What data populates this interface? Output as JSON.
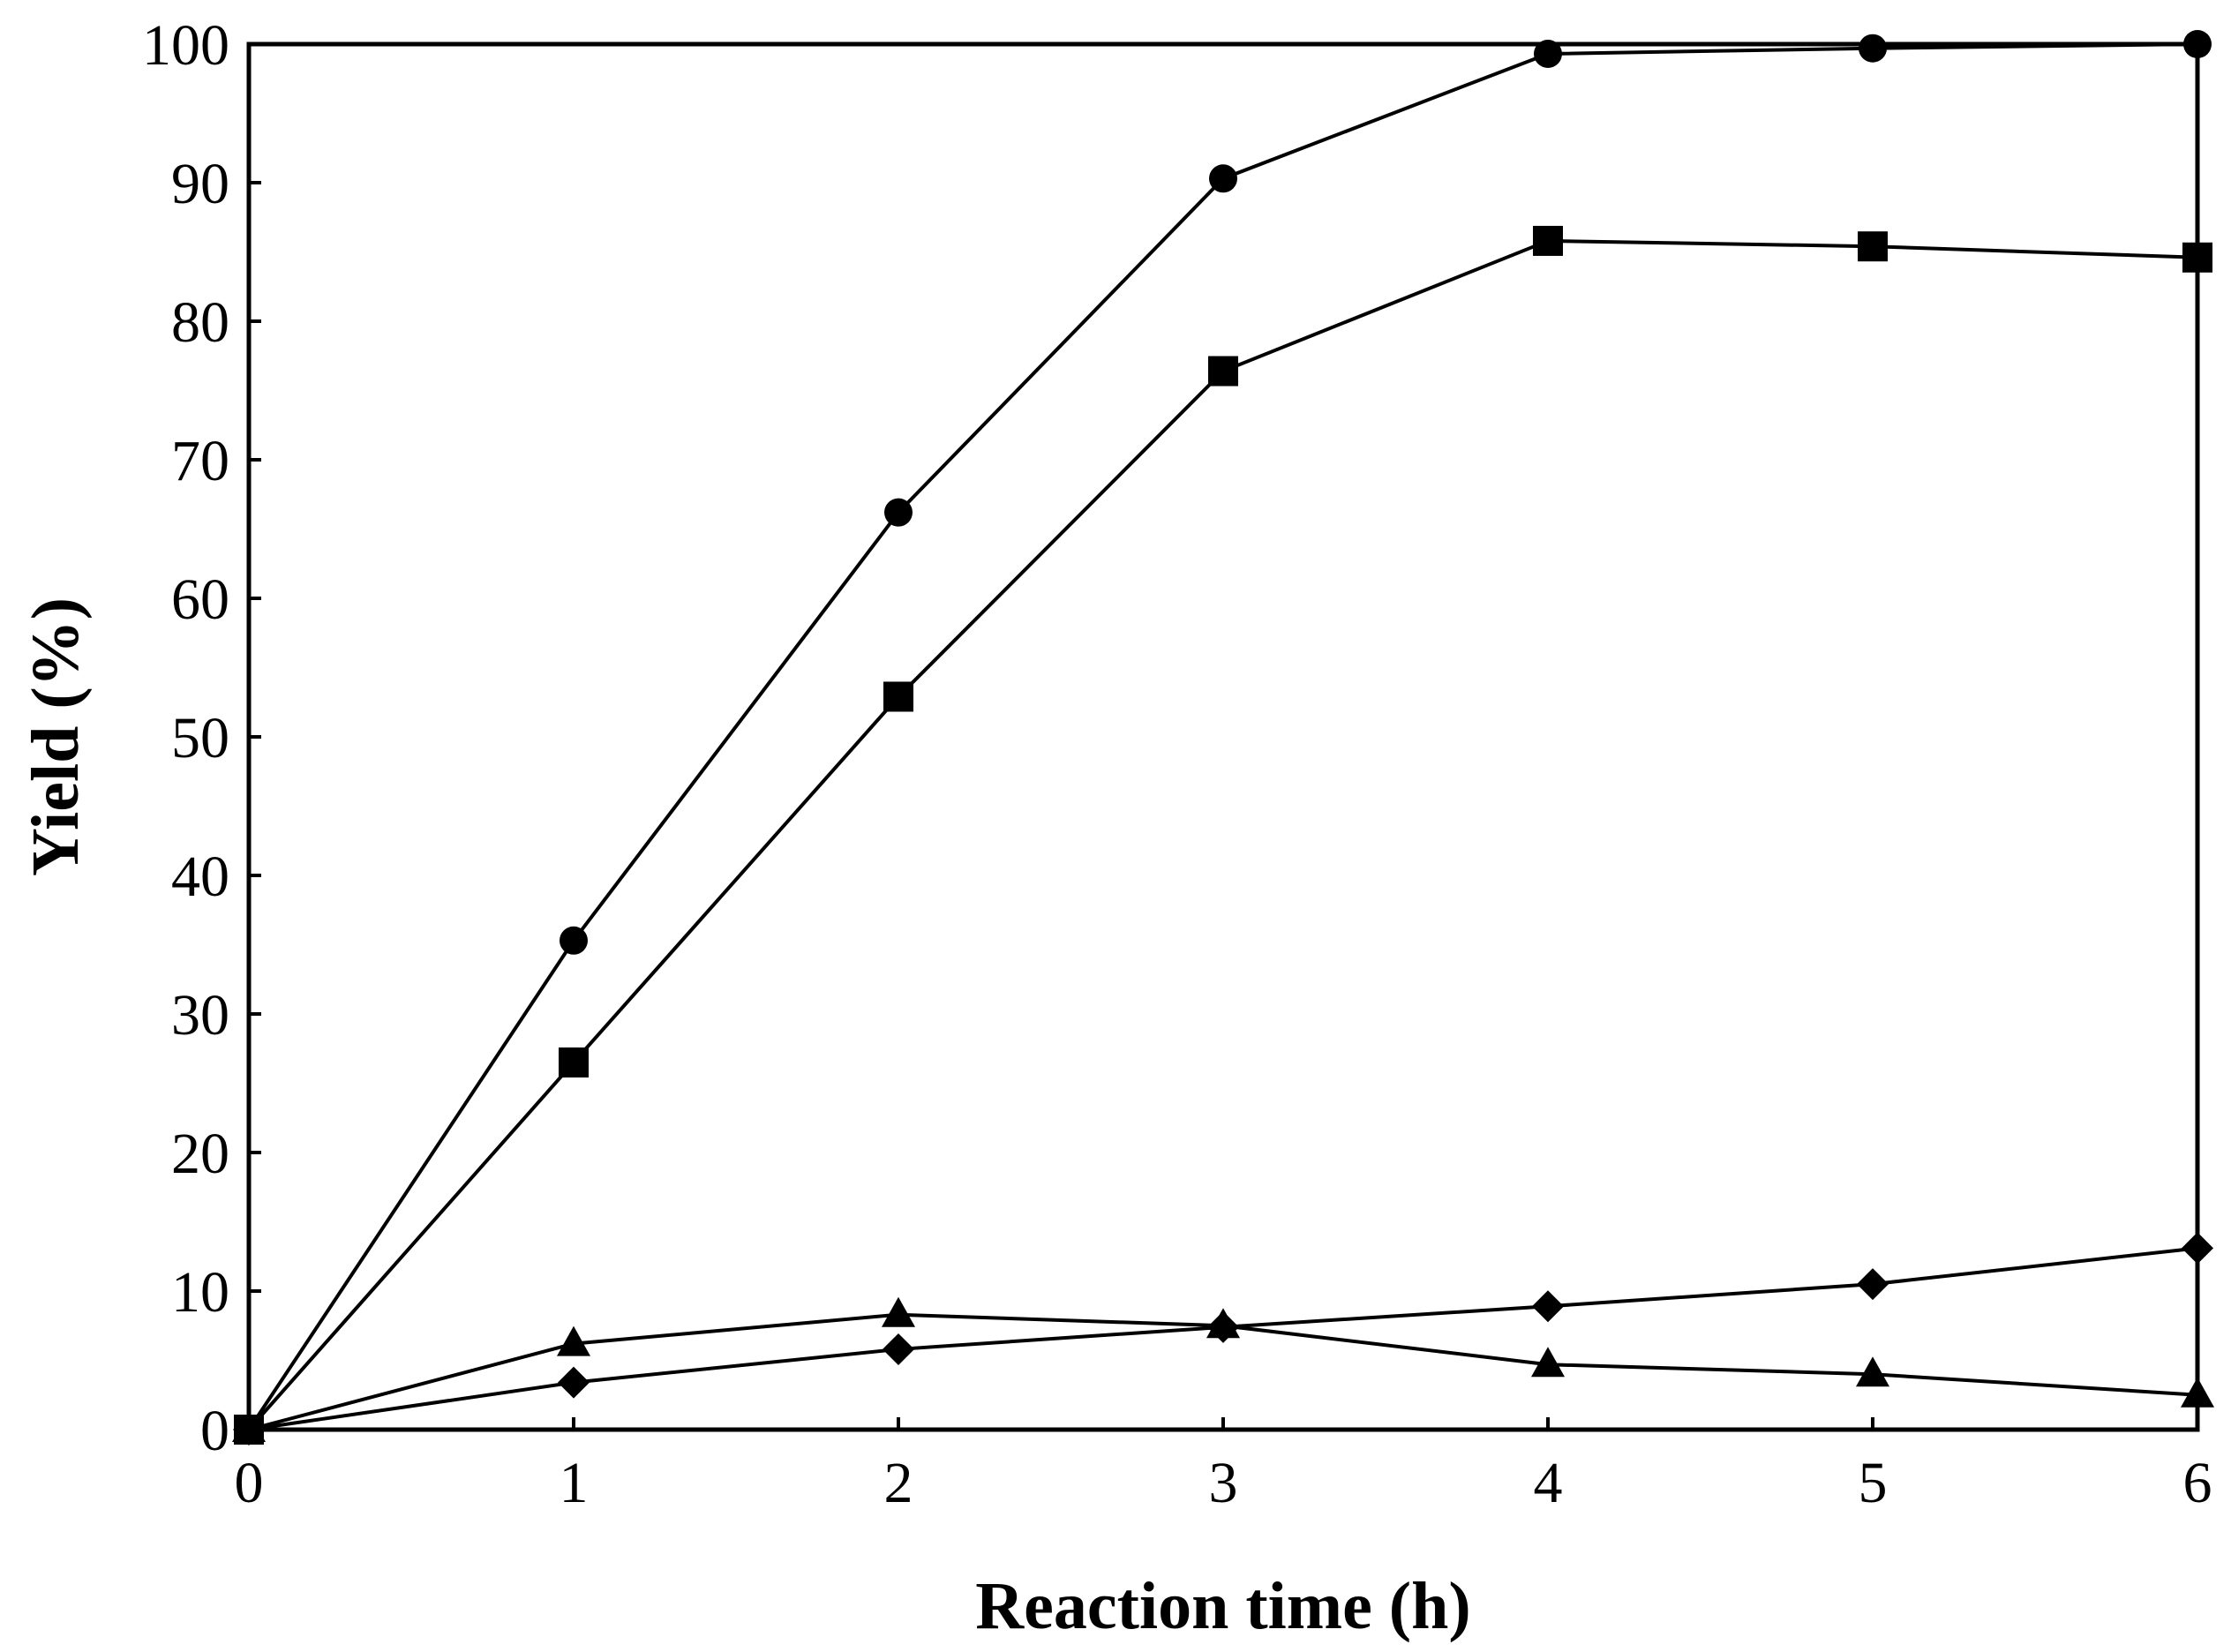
{
  "chart_data": {
    "type": "line",
    "title": "",
    "xlabel": "Reaction time (h)",
    "ylabel": "Yield (%)",
    "x": [
      0,
      1,
      2,
      3,
      4,
      5,
      6
    ],
    "xlim": [
      0,
      6
    ],
    "ylim": [
      0,
      100
    ],
    "xticks": [
      "0",
      "1",
      "2",
      "3",
      "4",
      "5",
      "6"
    ],
    "yticks": [
      "0",
      "10",
      "20",
      "30",
      "40",
      "50",
      "60",
      "70",
      "80",
      "90",
      "100"
    ],
    "grid": false,
    "legend": "none",
    "line_color": "#000000",
    "series": [
      {
        "name": "circle",
        "marker": "circle",
        "values": [
          0,
          35.3,
          66.2,
          90.3,
          99.3,
          99.7,
          100.0
        ]
      },
      {
        "name": "square",
        "marker": "square",
        "values": [
          0,
          26.5,
          52.9,
          76.4,
          85.8,
          85.4,
          84.6
        ]
      },
      {
        "name": "diamond",
        "marker": "diamond",
        "values": [
          0,
          3.4,
          5.8,
          7.4,
          8.9,
          10.5,
          13.1
        ]
      },
      {
        "name": "triangle",
        "marker": "triangle",
        "values": [
          0,
          6.2,
          8.3,
          7.5,
          4.7,
          4.0,
          2.5
        ]
      }
    ]
  }
}
